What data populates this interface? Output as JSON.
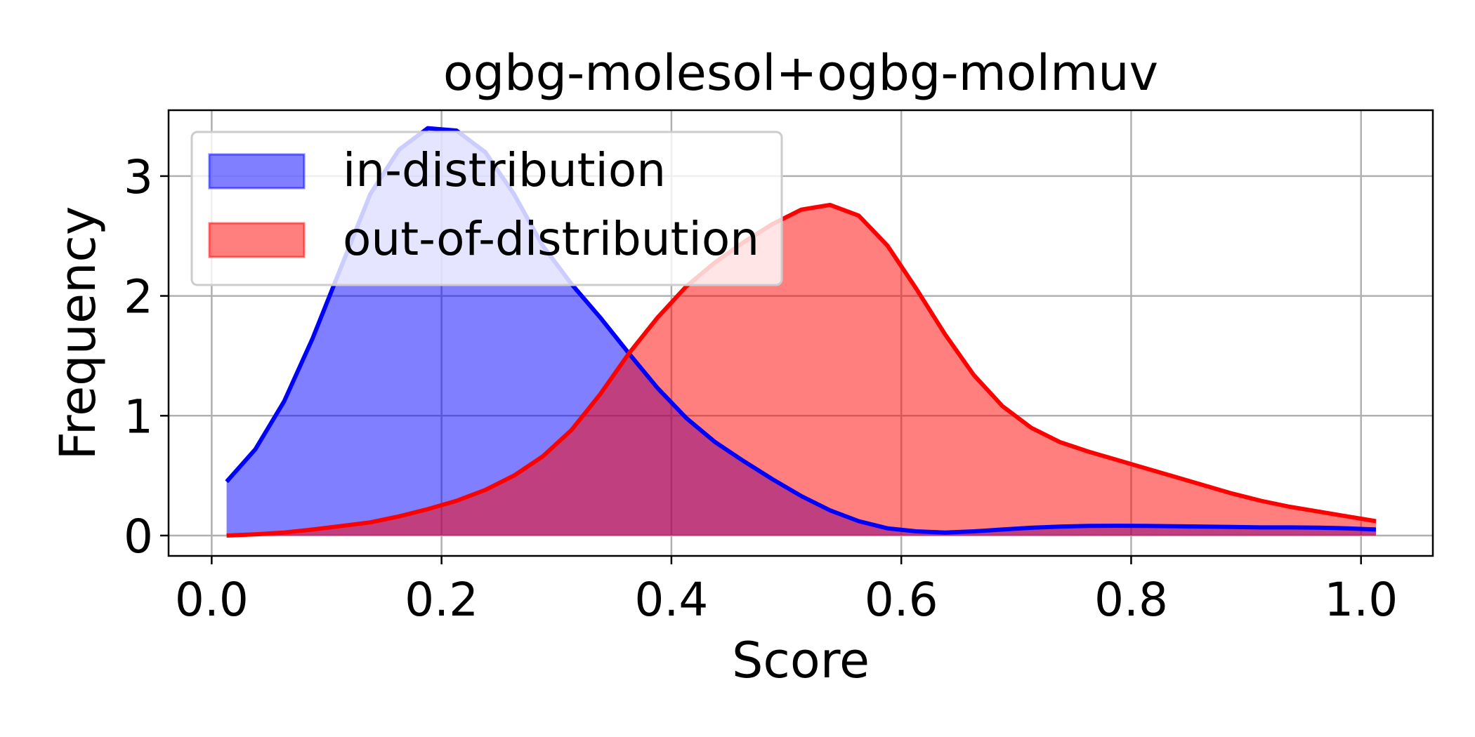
{
  "chart_data": {
    "type": "area",
    "title": "ogbg-molesol+ogbg-molmuv",
    "xlabel": "Score",
    "ylabel": "Frequency",
    "xlim": [
      -0.0375,
      1.0625
    ],
    "ylim": [
      -0.17,
      3.55
    ],
    "xticks": [
      0.0,
      0.2,
      0.4,
      0.6,
      0.8,
      1.0
    ],
    "xtick_labels": [
      "0.0",
      "0.2",
      "0.4",
      "0.6",
      "0.8",
      "1.0"
    ],
    "yticks": [
      0,
      1,
      2,
      3
    ],
    "ytick_labels": [
      "0",
      "1",
      "2",
      "3"
    ],
    "grid": true,
    "legend_position": "upper-left",
    "series": [
      {
        "name": "in-distribution",
        "color": "#0000ff",
        "x": [
          0.013,
          0.038,
          0.063,
          0.088,
          0.113,
          0.138,
          0.163,
          0.188,
          0.213,
          0.238,
          0.263,
          0.288,
          0.313,
          0.338,
          0.363,
          0.388,
          0.413,
          0.438,
          0.463,
          0.488,
          0.513,
          0.538,
          0.563,
          0.588,
          0.613,
          0.638,
          0.663,
          0.688,
          0.713,
          0.738,
          0.763,
          0.788,
          0.813,
          0.838,
          0.863,
          0.888,
          0.913,
          0.938,
          0.963,
          0.988,
          1.013
        ],
        "y": [
          0.45,
          0.72,
          1.12,
          1.65,
          2.25,
          2.85,
          3.22,
          3.4,
          3.38,
          3.2,
          2.85,
          2.42,
          2.1,
          1.82,
          1.52,
          1.23,
          0.98,
          0.78,
          0.62,
          0.47,
          0.33,
          0.21,
          0.12,
          0.06,
          0.035,
          0.025,
          0.035,
          0.05,
          0.065,
          0.075,
          0.08,
          0.082,
          0.08,
          0.078,
          0.075,
          0.072,
          0.068,
          0.068,
          0.066,
          0.06,
          0.05
        ]
      },
      {
        "name": "out-of-distribution",
        "color": "#ff0000",
        "x": [
          0.013,
          0.038,
          0.063,
          0.088,
          0.113,
          0.138,
          0.163,
          0.188,
          0.213,
          0.238,
          0.263,
          0.288,
          0.313,
          0.338,
          0.363,
          0.388,
          0.413,
          0.438,
          0.463,
          0.488,
          0.513,
          0.538,
          0.563,
          0.588,
          0.613,
          0.638,
          0.663,
          0.688,
          0.713,
          0.738,
          0.763,
          0.788,
          0.813,
          0.838,
          0.863,
          0.888,
          0.913,
          0.938,
          0.963,
          0.988,
          1.013
        ],
        "y": [
          0.0,
          0.01,
          0.025,
          0.05,
          0.08,
          0.11,
          0.16,
          0.22,
          0.29,
          0.38,
          0.5,
          0.66,
          0.88,
          1.18,
          1.52,
          1.82,
          2.08,
          2.28,
          2.45,
          2.6,
          2.72,
          2.76,
          2.67,
          2.42,
          2.06,
          1.68,
          1.34,
          1.08,
          0.9,
          0.78,
          0.7,
          0.63,
          0.56,
          0.49,
          0.42,
          0.35,
          0.29,
          0.24,
          0.2,
          0.16,
          0.12
        ]
      }
    ]
  }
}
